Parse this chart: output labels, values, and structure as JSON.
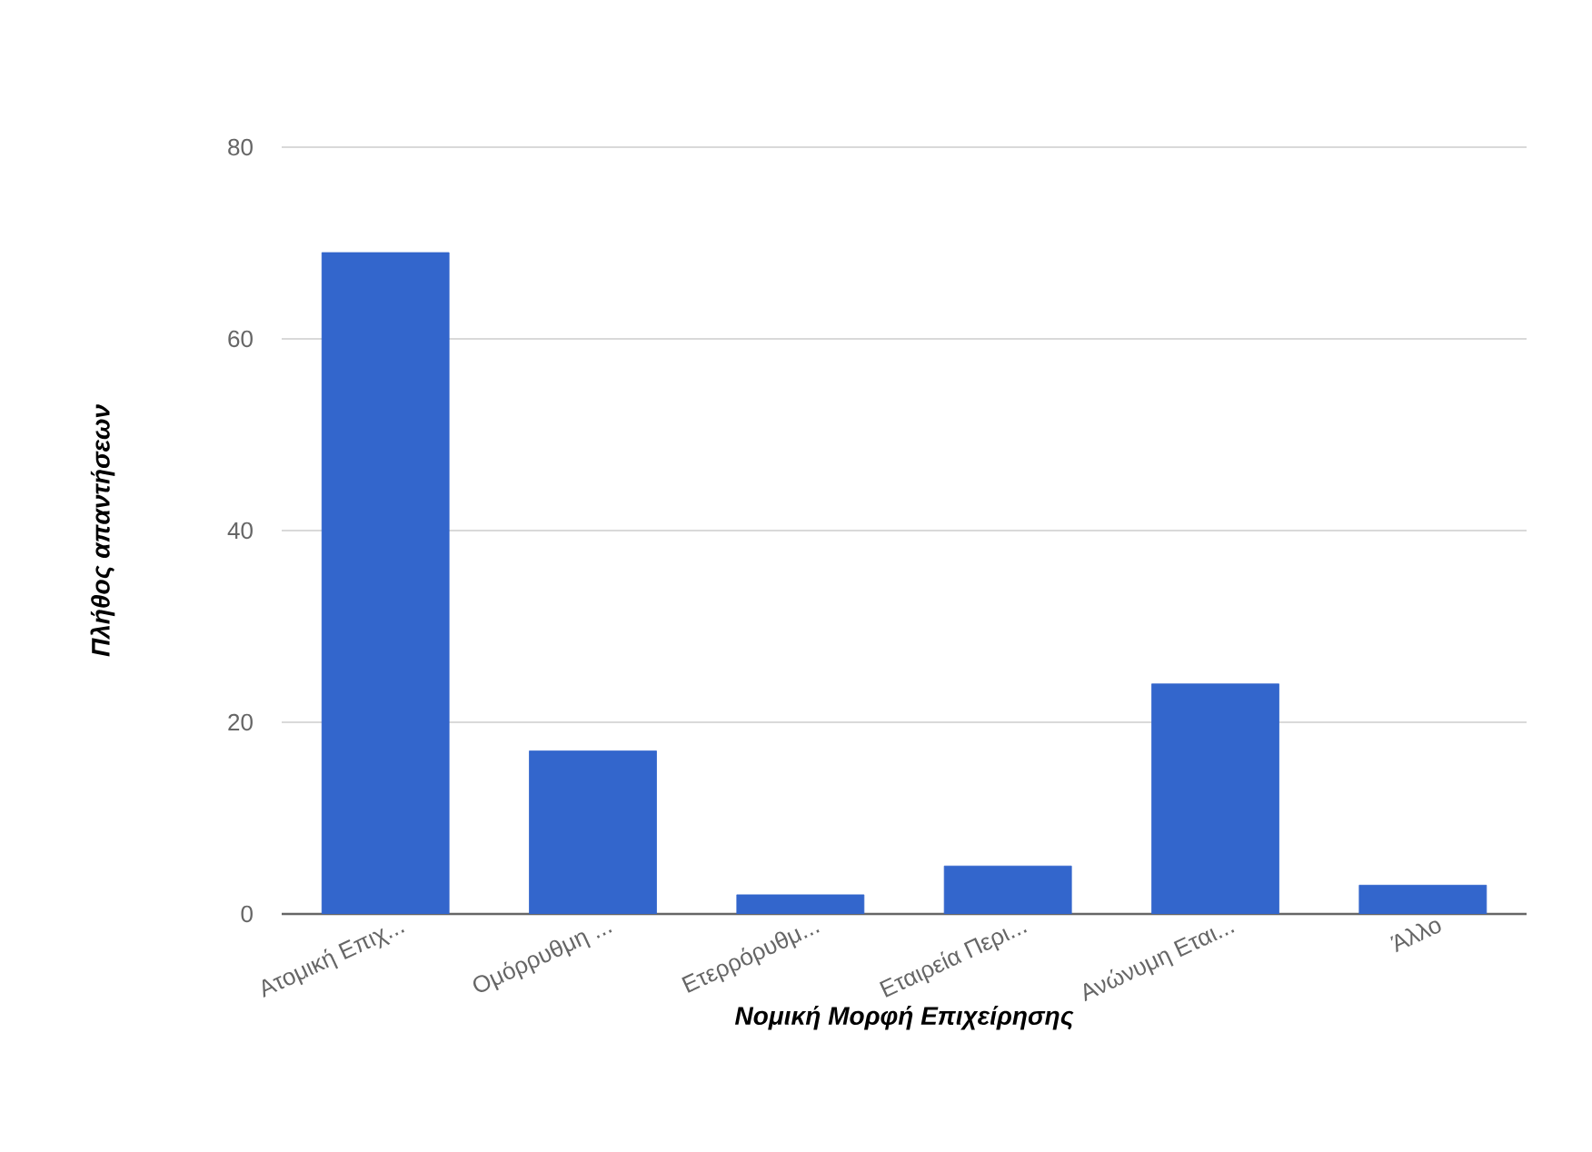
{
  "chart_data": {
    "type": "bar",
    "xlabel": "Νομική Μορφή Επιχείρησης",
    "ylabel": "Πλήθος απαντήσεων",
    "categories": [
      "Ατομική Επιχ...",
      "Ομόρρυθμη ...",
      "Ετερρόρυθμ...",
      "Εταιρεία Περι...",
      "Ανώνυμη Εται...",
      "Άλλο"
    ],
    "values": [
      69,
      17,
      2,
      5,
      24,
      3
    ],
    "color": "#3366cc",
    "ylim": [
      0,
      80
    ],
    "yticks": [
      0,
      20,
      40,
      60,
      80
    ],
    "grid": "y"
  }
}
